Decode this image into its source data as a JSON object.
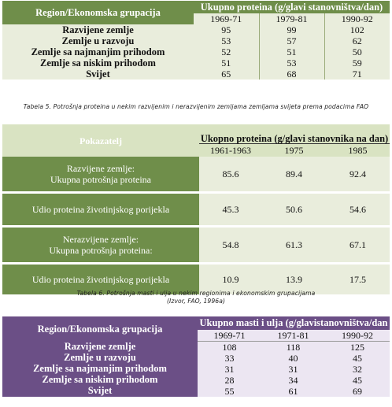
{
  "table1": {
    "row_header": "Region/Ekonomska grupacija",
    "title": "Ukupno proteina (g/glavi stanovništva/dan)",
    "years": [
      "1969-71",
      "1979-81",
      "1990-92"
    ],
    "rows": [
      {
        "label": "Razvijene zemlje",
        "values": [
          "95",
          "99",
          "102"
        ]
      },
      {
        "label": "Zemlje u razvoju",
        "values": [
          "53",
          "57",
          "62"
        ]
      },
      {
        "label": "Zemlje sa najmanjim prihodom",
        "values": [
          "52",
          "51",
          "50"
        ]
      },
      {
        "label": "Zemlje sa niskim prihodom",
        "values": [
          "51",
          "53",
          "59"
        ]
      },
      {
        "label": "Svijet",
        "values": [
          "65",
          "68",
          "71"
        ]
      }
    ]
  },
  "caption1": "Tabela 5. Potrošnja proteina u nekim razvijenim i nerazvijenim zemljama zemljama svijeta prema podacima FAO",
  "table2": {
    "row_header": "Pokazatelj",
    "title": "Ukopno proteina (g/glavi stanovnika na dan)",
    "years": [
      "1961-1963",
      "1975",
      "1985"
    ],
    "rows": [
      {
        "label_line1": "Razvijene zemlje:",
        "label_line2": "Ukupna potrošnja proteina",
        "values": [
          "85.6",
          "89.4",
          "92.4"
        ]
      },
      {
        "label_line1": "",
        "label_line2": "Udio proteina životinjskog  porijekla",
        "values": [
          "45.3",
          "50.6",
          "54.6"
        ]
      },
      {
        "label_line1": "Nerazvijene zemlje:",
        "label_line2": "Ukupna potrošnja proteina:",
        "values": [
          "54.8",
          "61.3",
          "67.1"
        ]
      },
      {
        "label_line1": "",
        "label_line2": "Udio proteina životinjskog  porijekla",
        "values": [
          "10.9",
          "13.9",
          "17.5"
        ]
      }
    ]
  },
  "caption2_line1": "Tabela 6. Potrošnja masti i ulja u nekim regionima i ekonomskim grupacijama",
  "caption2_line2": "(Izvor, FAO, 1996a)",
  "table3": {
    "row_header": "Region/Ekonomska grupacija",
    "title": "Ukupno masti i ulja (g/glavistanovništva/dan",
    "years": [
      "1969-71",
      "1971-81",
      "1990-92"
    ],
    "rows": [
      {
        "label": "Razvijene zemlje",
        "values": [
          "108",
          "118",
          "125"
        ]
      },
      {
        "label": "Zemlje u razvoju",
        "values": [
          "33",
          "40",
          "45"
        ]
      },
      {
        "label": "Zemlje sa najmanjim prihodom",
        "values": [
          "31",
          "31",
          "32"
        ]
      },
      {
        "label": "Zemlje sa niskim prihodom",
        "values": [
          "28",
          "34",
          "45"
        ]
      },
      {
        "label": "Svijet",
        "values": [
          "55",
          "61",
          "69"
        ]
      }
    ]
  }
}
